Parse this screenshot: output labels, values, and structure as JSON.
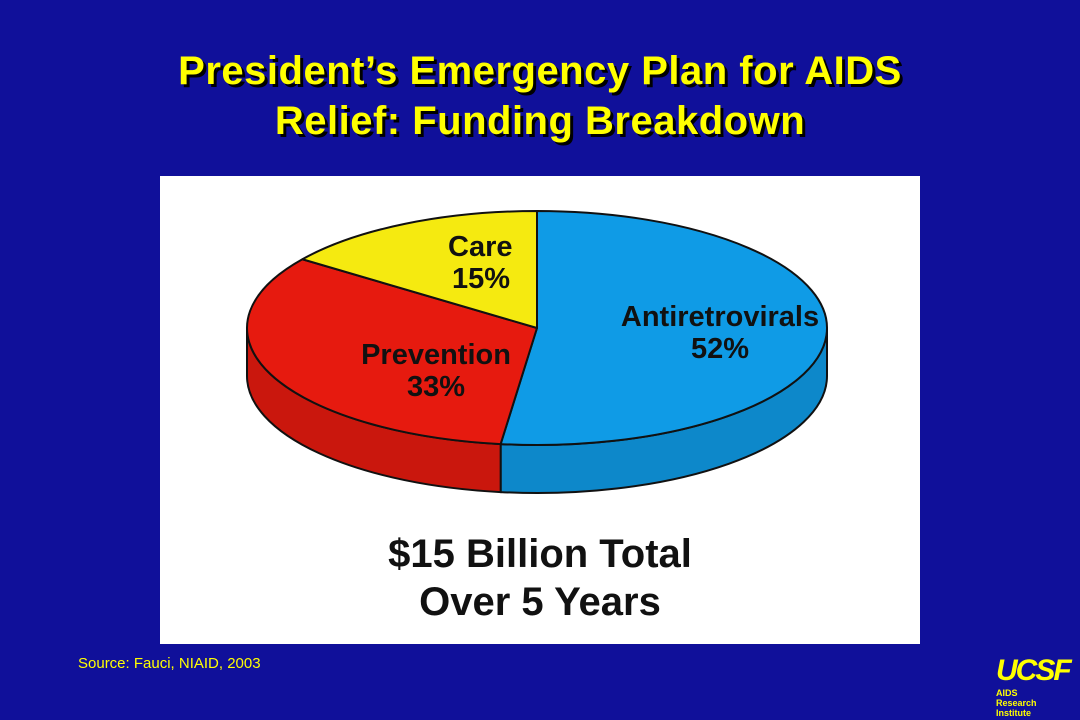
{
  "title": {
    "line1": "President’s Emergency Plan for AIDS",
    "line2": "Relief: Funding Breakdown"
  },
  "chart_data": {
    "type": "pie",
    "slices": [
      {
        "label": "Antiretrovirals",
        "value": 52,
        "value_text": "52%",
        "color": "#0f9be6"
      },
      {
        "label": "Prevention",
        "value": 33,
        "value_text": "33%",
        "color": "#e61a0f"
      },
      {
        "label": "Care",
        "value": 15,
        "value_text": "15%",
        "color": "#f5ea10"
      }
    ],
    "style": "3d-tilted",
    "total_line1": "$15 Billion Total",
    "total_line2": "Over 5 Years"
  },
  "source": "Source: Fauci, NIAID, 2003",
  "logo": {
    "mark": "UCSF",
    "line1": "AIDS",
    "line2": "Research Institute"
  },
  "colors": {
    "background": "#10109a",
    "title": "#ffff00",
    "panel": "#ffffff"
  }
}
